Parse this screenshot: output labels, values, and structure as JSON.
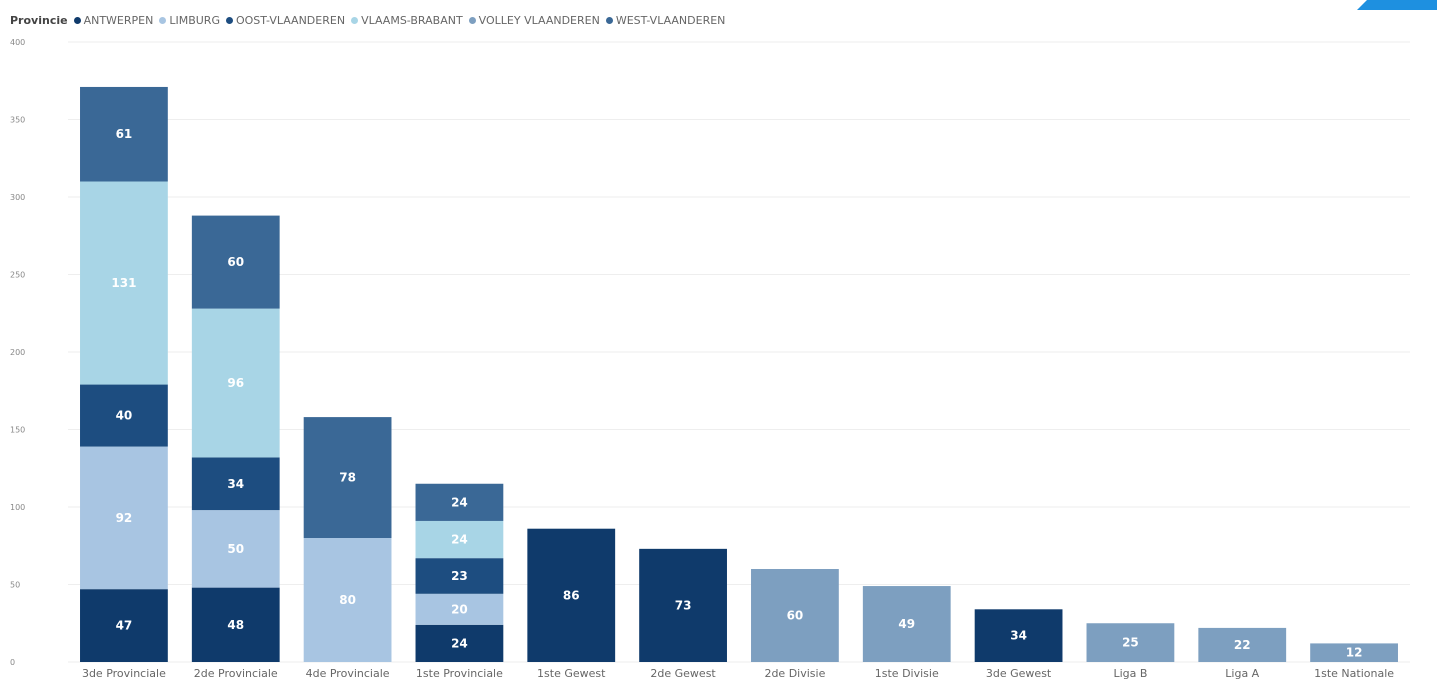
{
  "chart_data": {
    "type": "bar",
    "stacked": true,
    "legend_title": "Provincie",
    "legend_position": "top-left",
    "grid": true,
    "ylim": [
      0,
      400
    ],
    "yticks": [
      0,
      50,
      100,
      150,
      200,
      250,
      300,
      350,
      400
    ],
    "categories": [
      "3de Provinciale",
      "2de Provinciale",
      "4de Provinciale",
      "1ste Provinciale",
      "1ste Gewest",
      "2de Gewest",
      "2de Divisie",
      "1ste Divisie",
      "3de Gewest",
      "Liga B",
      "Liga A",
      "1ste Nationale"
    ],
    "series": [
      {
        "name": "ANTWERPEN",
        "color": "#0f3a6b",
        "values": [
          47,
          48,
          null,
          24,
          86,
          73,
          null,
          null,
          34,
          null,
          null,
          null
        ]
      },
      {
        "name": "LIMBURG",
        "color": "#a8c5e2",
        "values": [
          92,
          50,
          80,
          20,
          null,
          null,
          null,
          null,
          null,
          null,
          null,
          null
        ]
      },
      {
        "name": "OOST-VLAANDEREN",
        "color": "#1d4d80",
        "values": [
          40,
          34,
          null,
          23,
          null,
          null,
          null,
          null,
          null,
          null,
          null,
          null
        ]
      },
      {
        "name": "VLAAMS-BRABANT",
        "color": "#a8d5e6",
        "values": [
          131,
          96,
          null,
          24,
          null,
          null,
          null,
          null,
          null,
          null,
          null,
          null
        ]
      },
      {
        "name": "VOLLEY VLAANDEREN",
        "color": "#7d9fc0",
        "values": [
          null,
          null,
          null,
          null,
          null,
          null,
          60,
          49,
          null,
          25,
          22,
          12
        ]
      },
      {
        "name": "WEST-VLAANDEREN",
        "color": "#3a6896",
        "values": [
          61,
          60,
          78,
          24,
          null,
          null,
          null,
          null,
          null,
          null,
          null,
          null
        ]
      }
    ]
  }
}
